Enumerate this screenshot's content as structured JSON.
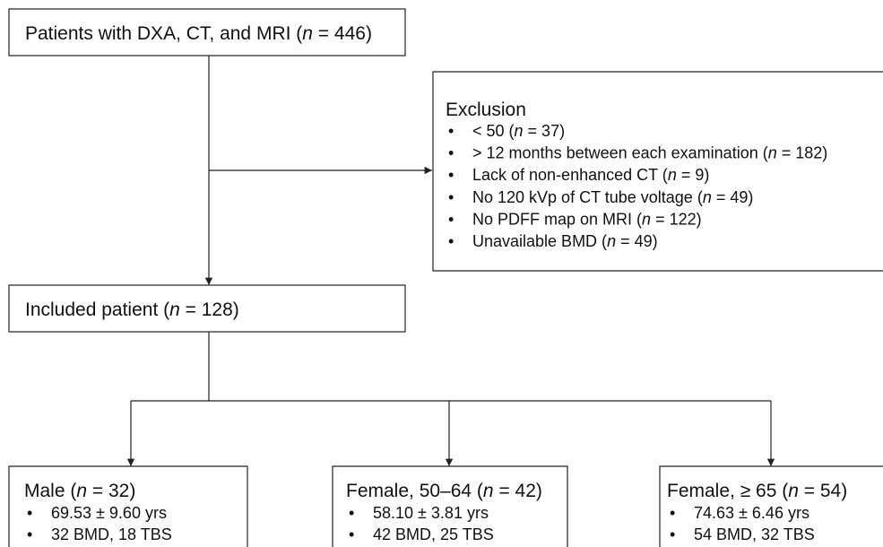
{
  "top": [
    "Patients with DXA, CT, and MRI (",
    "n",
    " = 446)"
  ],
  "exclusion": {
    "title": "Exclusion",
    "items": [
      [
        "< 50 (",
        "n",
        " = 37)"
      ],
      [
        "> 12 months between each examination (",
        "n",
        " = 182)"
      ],
      [
        "Lack of non-enhanced CT (",
        "n",
        " = 9)"
      ],
      [
        "No 120 kVp of CT tube voltage (",
        "n",
        " = 49)"
      ],
      [
        "No PDFF map on MRI (",
        "n",
        " = 122)"
      ],
      [
        "Unavailable BMD (",
        "n",
        " = 49)"
      ]
    ]
  },
  "included": [
    "Included patient (",
    "n",
    " = 128)"
  ],
  "groups": [
    {
      "title": [
        "Male (",
        "n",
        " = 32)"
      ],
      "items": [
        [
          "69.53 ± 9.60 yrs"
        ],
        [
          "32 BMD, 18 TBS"
        ]
      ]
    },
    {
      "title": [
        "Female, 50–64 (",
        "n",
        " = 42)"
      ],
      "items": [
        [
          "58.10 ± 3.81 yrs"
        ],
        [
          "42 BMD, 25 TBS"
        ]
      ]
    },
    {
      "title": [
        "Female, ≥ 65 (",
        "n",
        " = 54)"
      ],
      "items": [
        [
          "74.63 ± 6.46 yrs"
        ],
        [
          "54 BMD, 32 TBS"
        ]
      ]
    }
  ]
}
